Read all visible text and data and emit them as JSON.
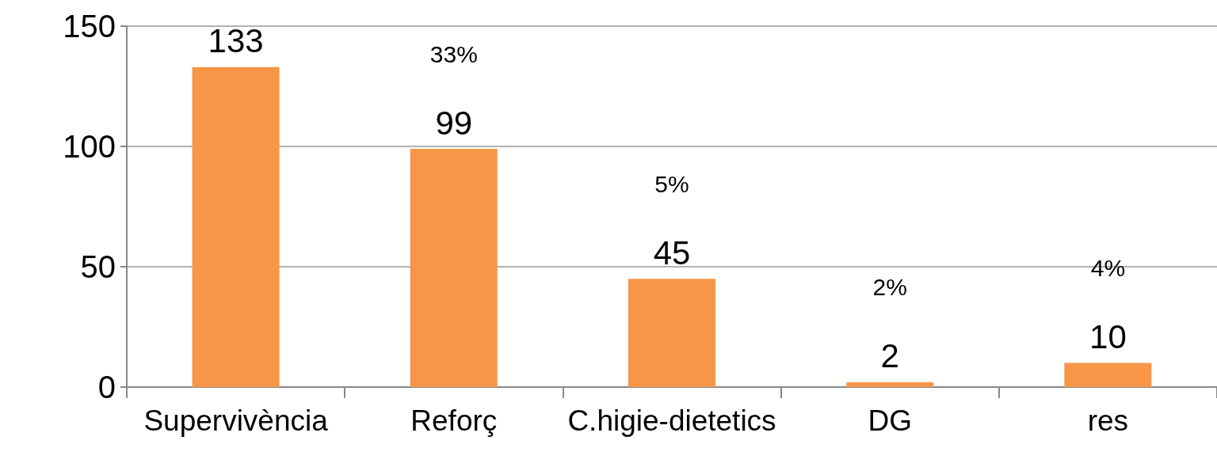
{
  "chart_data": {
    "type": "bar",
    "categories": [
      "Supervivència",
      "Reforç",
      "C.higie-dietetics",
      "DG",
      "res"
    ],
    "values": [
      133,
      99,
      45,
      2,
      10
    ],
    "color": "#f79646",
    "data_labels": true,
    "ylim": [
      0,
      150
    ],
    "yticks": [
      0,
      50,
      100,
      150
    ],
    "grid": "y",
    "annotations": [
      "33%",
      "5%",
      "2%",
      "4%"
    ]
  }
}
